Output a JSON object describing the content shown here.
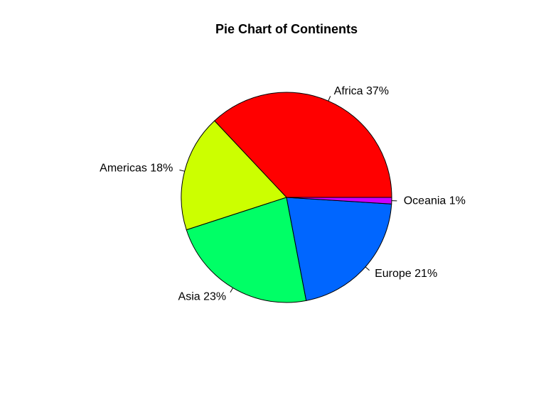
{
  "chart_data": {
    "type": "pie",
    "title": "Pie Chart of Continents",
    "slices": [
      {
        "category": "Africa",
        "value": 37,
        "label": "Africa 37%",
        "color": "#FF0000"
      },
      {
        "category": "Americas",
        "value": 18,
        "label": "Americas 18%",
        "color": "#CCFF00"
      },
      {
        "category": "Asia",
        "value": 23,
        "label": "Asia 23%",
        "color": "#00FF66"
      },
      {
        "category": "Europe",
        "value": 21,
        "label": "Europe 21%",
        "color": "#0066FF"
      },
      {
        "category": "Oceania",
        "value": 1,
        "label": "Oceania 1%",
        "color": "#CC00FF"
      }
    ],
    "start": "3 o'clock",
    "direction": "counterclockwise",
    "legend": "none"
  }
}
